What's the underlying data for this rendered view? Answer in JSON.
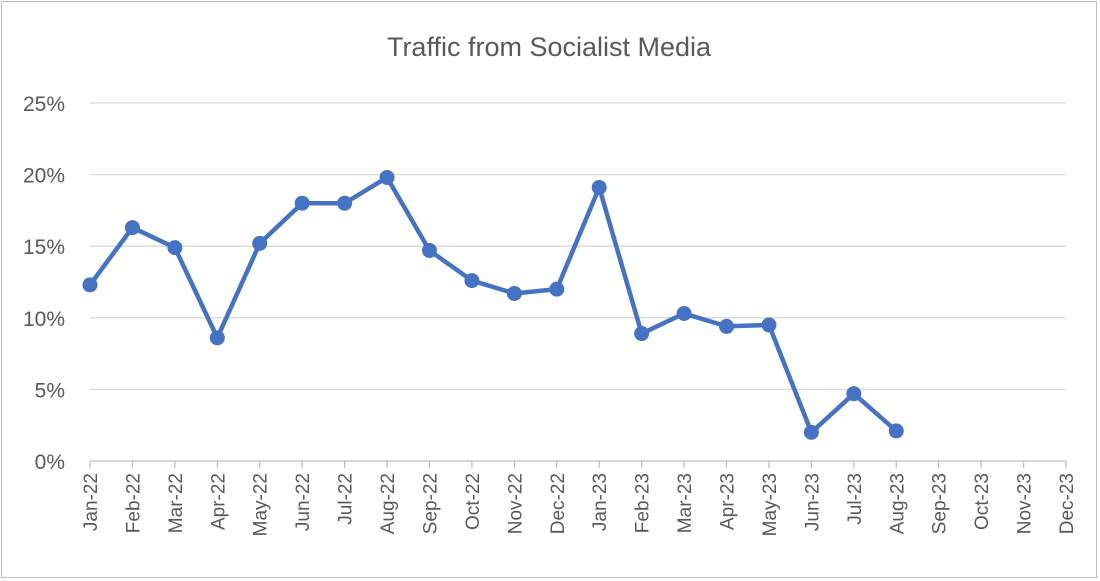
{
  "chart_data": {
    "type": "line",
    "title": "Traffic from Socialist Media",
    "xlabel": "",
    "ylabel": "",
    "categories": [
      "Jan-22",
      "Feb-22",
      "Mar-22",
      "Apr-22",
      "May-22",
      "Jun-22",
      "Jul-22",
      "Aug-22",
      "Sep-22",
      "Oct-22",
      "Nov-22",
      "Dec-22",
      "Jan-23",
      "Feb-23",
      "Mar-23",
      "Apr-23",
      "May-23",
      "Jun-23",
      "Jul-23",
      "Aug-23",
      "Sep-23",
      "Oct-23",
      "Nov-23",
      "Dec-23"
    ],
    "series": [
      {
        "values": [
          12.3,
          16.3,
          14.9,
          8.6,
          15.2,
          18.0,
          18.0,
          19.8,
          14.7,
          12.6,
          11.7,
          12.0,
          19.1,
          8.9,
          10.3,
          9.4,
          9.5,
          2.0,
          4.7,
          2.1,
          null,
          null,
          null,
          null
        ],
        "color": "#4472C4"
      }
    ],
    "yticks": [
      "0%",
      "5%",
      "10%",
      "15%",
      "20%",
      "25%"
    ],
    "ylim": [
      0,
      25
    ],
    "grid": true,
    "legend": "none"
  }
}
